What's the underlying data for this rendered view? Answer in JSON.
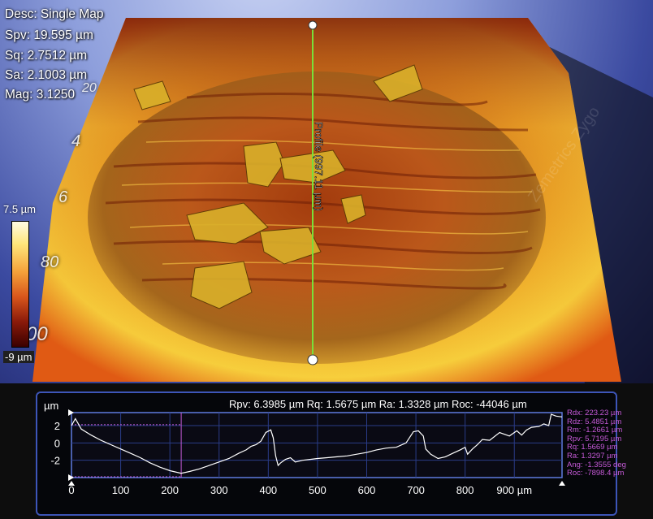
{
  "overlay": {
    "desc": "Desc: Single Map",
    "spv": "Spv: 19.595 µm",
    "sq": "Sq: 2.7512 µm",
    "sa": "Sa: 2.1003 µm",
    "mag": "Mag: 3.1250"
  },
  "colorbar": {
    "max_label": "7.5 µm",
    "min_label": "-9 µm",
    "colors": [
      "#fffbe4",
      "#ffe67a",
      "#f5a23a",
      "#d8561c",
      "#8a1a0a",
      "#3a0000"
    ]
  },
  "ghost_ticks": [
    "20",
    "4",
    "6",
    "80",
    "00"
  ],
  "watermark": "Zemetrics Zygo",
  "profile_line": {
    "label": "Profile (997.11 µm)"
  },
  "profile_panel": {
    "y_unit": "µm",
    "stats_line": "Rpv: 6.3985 µm  Rq: 1.5675 µm  Ra: 1.3328 µm  Roc: -44046 µm",
    "side_stats": [
      "Rdx: 223.23 µm",
      "Rdz: 5.4851 µm",
      "Rm: -1.2661 µm",
      "Rpv: 5.7195 µm",
      "Rq: 1.5669 µm",
      "Ra: 1.3297 µm",
      "Ang: -1.3555 deg",
      "Roc: -7898.4 µm"
    ]
  },
  "chart_data": {
    "type": "line",
    "title": "",
    "xlabel": "µm",
    "ylabel": "µm",
    "xlim": [
      0,
      997
    ],
    "ylim": [
      -4,
      3.5
    ],
    "x_ticks": [
      "0",
      "100",
      "200",
      "300",
      "400",
      "500",
      "600",
      "700",
      "800",
      "900 µm"
    ],
    "x_tick_values": [
      0,
      100,
      200,
      300,
      400,
      500,
      600,
      700,
      800,
      900
    ],
    "y_ticks": [
      "2",
      "0",
      "-2"
    ],
    "y_tick_values": [
      2,
      0,
      -2
    ],
    "cursor_x": 223,
    "reference_level_y": 2.1,
    "series": [
      {
        "x": [
          0,
          8,
          20,
          40,
          60,
          80,
          100,
          120,
          140,
          160,
          180,
          200,
          223,
          240,
          260,
          280,
          300,
          320,
          340,
          355,
          365,
          375,
          385,
          395,
          405,
          410,
          415,
          420,
          425,
          435,
          445,
          455,
          470,
          485,
          500,
          520,
          540,
          560,
          580,
          600,
          620,
          640,
          660,
          680,
          695,
          705,
          715,
          720,
          730,
          745,
          760,
          775,
          790,
          800,
          805,
          815,
          825,
          835,
          850,
          870,
          890,
          905,
          915,
          925,
          935,
          950,
          960,
          970,
          975,
          985,
          997
        ],
        "y": [
          2.0,
          2.8,
          1.6,
          0.9,
          0.3,
          -0.2,
          -0.7,
          -1.2,
          -1.7,
          -2.3,
          -2.8,
          -3.2,
          -3.5,
          -3.3,
          -3.0,
          -2.6,
          -2.2,
          -1.8,
          -1.2,
          -0.8,
          -0.4,
          -0.2,
          0.2,
          1.2,
          1.5,
          0.6,
          -1.5,
          -2.6,
          -2.3,
          -1.9,
          -1.7,
          -2.2,
          -2.0,
          -1.9,
          -1.8,
          -1.7,
          -1.6,
          -1.5,
          -1.3,
          -1.1,
          -0.8,
          -0.6,
          -0.5,
          0.0,
          1.3,
          1.4,
          0.8,
          -0.7,
          -1.3,
          -1.8,
          -1.6,
          -1.2,
          -0.8,
          -0.5,
          -1.3,
          -0.7,
          -0.2,
          0.4,
          0.3,
          1.2,
          0.8,
          1.4,
          0.9,
          1.5,
          1.8,
          1.9,
          2.2,
          2.0,
          3.3,
          3.1,
          3.0
        ]
      }
    ]
  }
}
